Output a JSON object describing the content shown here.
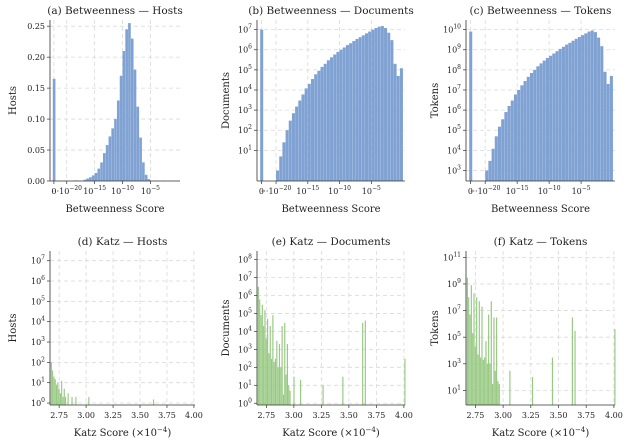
{
  "colors": {
    "betweenness": "#7fa2d3",
    "katz": "#98c983"
  },
  "chart_data": [
    {
      "type": "bar",
      "title": "(a) Betweenness — Hosts",
      "xlabel": "Betweenness Score",
      "ylabel": "Hosts",
      "yscale": "linear",
      "ylim": [
        0,
        0.26
      ],
      "xlim": [
        -23,
        0.3
      ],
      "xticks": [
        {
          "v": -22.3,
          "label": "0"
        },
        {
          "v": -20,
          "label": "···10",
          "sup": "−20"
        },
        {
          "v": -15,
          "label": "10",
          "sup": "−15"
        },
        {
          "v": -10,
          "label": "10",
          "sup": "−10"
        },
        {
          "v": -5,
          "label": "10",
          "sup": "−5"
        }
      ],
      "yticks": [
        {
          "v": 0,
          "label": "0.00"
        },
        {
          "v": 0.05,
          "label": "0.05"
        },
        {
          "v": 0.1,
          "label": "0.10"
        },
        {
          "v": 0.15,
          "label": "0.15"
        },
        {
          "v": 0.2,
          "label": "0.20"
        },
        {
          "v": 0.25,
          "label": "0.25"
        }
      ],
      "bin_width": 0.5,
      "x": [
        -22.5,
        -18.5,
        -17,
        -16.5,
        -16,
        -15.5,
        -15,
        -14.5,
        -14,
        -13.5,
        -13,
        -12.5,
        -12,
        -11.5,
        -11,
        -10.5,
        -10,
        -9.5,
        -9,
        -8.5,
        -8,
        -7.5,
        -7,
        -6.5,
        -6,
        -5.5
      ],
      "values": [
        0.165,
        0.001,
        0.002,
        0.004,
        0.006,
        0.009,
        0.013,
        0.02,
        0.03,
        0.045,
        0.058,
        0.072,
        0.085,
        0.1,
        0.13,
        0.17,
        0.21,
        0.245,
        0.255,
        0.23,
        0.18,
        0.12,
        0.07,
        0.03,
        0.01,
        0.003
      ]
    },
    {
      "type": "bar",
      "title": "(b) Betweenness — Documents",
      "xlabel": "Betweenness Score",
      "ylabel": "Documents",
      "yscale": "log",
      "ylim": [
        0.3,
        30000000
      ],
      "xlim": [
        -23,
        0.3
      ],
      "xticks": [
        {
          "v": -22.3,
          "label": "0"
        },
        {
          "v": -20,
          "label": "···10",
          "sup": "−20"
        },
        {
          "v": -15,
          "label": "10",
          "sup": "−15"
        },
        {
          "v": -10,
          "label": "10",
          "sup": "−10"
        },
        {
          "v": -5,
          "label": "10",
          "sup": "−5"
        }
      ],
      "yticks": [
        {
          "v": 10,
          "label": "10",
          "sup": "1"
        },
        {
          "v": 100,
          "label": "10",
          "sup": "2"
        },
        {
          "v": 1000,
          "label": "10",
          "sup": "3"
        },
        {
          "v": 10000,
          "label": "10",
          "sup": "4"
        },
        {
          "v": 100000,
          "label": "10",
          "sup": "5"
        },
        {
          "v": 1000000,
          "label": "10",
          "sup": "6"
        },
        {
          "v": 10000000,
          "label": "10",
          "sup": "7"
        }
      ],
      "bin_width": 0.5,
      "x": [
        -22.5,
        -20,
        -19.5,
        -19,
        -18.5,
        -18,
        -17.5,
        -17,
        -16.5,
        -16,
        -15.5,
        -15,
        -14.5,
        -14,
        -13.5,
        -13,
        -12.5,
        -12,
        -11.5,
        -11,
        -10.5,
        -10,
        -9.5,
        -9,
        -8.5,
        -8,
        -7.5,
        -7,
        -6.5,
        -6,
        -5.5,
        -5,
        -4.5,
        -4,
        -3.5,
        -3,
        -2.5,
        -2,
        -1.5,
        -1,
        -0.5
      ],
      "values": [
        10000000,
        1,
        5,
        25,
        100,
        300,
        700,
        1500,
        3000,
        6000,
        12000,
        20000,
        35000,
        60000,
        90000,
        140000,
        200000,
        300000,
        420000,
        580000,
        780000,
        1000000,
        1300000,
        1700000,
        2100000,
        2700000,
        3400000,
        4200000,
        5200000,
        6500000,
        8000000,
        10000000,
        12000000,
        14000000,
        15000000,
        12000000,
        7000000,
        3000000,
        200000,
        50000,
        120000
      ]
    },
    {
      "type": "bar",
      "title": "(c) Betweenness — Tokens",
      "xlabel": "Betweenness Score",
      "ylabel": "Tokens",
      "yscale": "log",
      "ylim": [
        300,
        30000000000
      ],
      "xlim": [
        -23,
        0.3
      ],
      "xticks": [
        {
          "v": -22.3,
          "label": "0"
        },
        {
          "v": -20,
          "label": "···10",
          "sup": "−20"
        },
        {
          "v": -15,
          "label": "10",
          "sup": "−15"
        },
        {
          "v": -10,
          "label": "10",
          "sup": "−10"
        },
        {
          "v": -5,
          "label": "10",
          "sup": "−5"
        }
      ],
      "yticks": [
        {
          "v": 1000,
          "label": "10",
          "sup": "3"
        },
        {
          "v": 10000,
          "label": "10",
          "sup": "4"
        },
        {
          "v": 100000,
          "label": "10",
          "sup": "5"
        },
        {
          "v": 1000000,
          "label": "10",
          "sup": "6"
        },
        {
          "v": 10000000,
          "label": "10",
          "sup": "7"
        },
        {
          "v": 100000000,
          "label": "10",
          "sup": "8"
        },
        {
          "v": 1000000000,
          "label": "10",
          "sup": "9"
        },
        {
          "v": 10000000000,
          "label": "10",
          "sup": "10"
        }
      ],
      "bin_width": 0.5,
      "x": [
        -22.5,
        -20,
        -19.5,
        -19,
        -18.5,
        -18,
        -17.5,
        -17,
        -16.5,
        -16,
        -15.5,
        -15,
        -14.5,
        -14,
        -13.5,
        -13,
        -12.5,
        -12,
        -11.5,
        -11,
        -10.5,
        -10,
        -9.5,
        -9,
        -8.5,
        -8,
        -7.5,
        -7,
        -6.5,
        -6,
        -5.5,
        -5,
        -4.5,
        -4,
        -3.5,
        -3,
        -2.5,
        -2,
        -1.5,
        -1,
        -0.5
      ],
      "values": [
        8000000000,
        1000,
        3000,
        12000,
        50000,
        150000,
        350000,
        800000,
        1600000,
        3000000,
        6000000,
        10000000,
        17000000,
        28000000,
        45000000,
        70000000,
        100000000,
        150000000,
        210000000,
        290000000,
        390000000,
        500000000,
        650000000,
        850000000,
        1100000000,
        1400000000,
        1800000000,
        2200000000,
        2800000000,
        3500000000,
        4300000000,
        5300000000,
        6500000000,
        8000000000,
        9000000000,
        7500000000,
        4000000000,
        1500000000,
        80000000,
        20000000,
        50000000
      ]
    },
    {
      "type": "bar",
      "title": "(d) Katz — Hosts",
      "xlabel": "Katz Score (×10",
      "xlabel_sup": "−4",
      "xlabel_tail": ")",
      "ylabel": "Hosts",
      "yscale": "log",
      "ylim": [
        0.8,
        30000000
      ],
      "xlim": [
        2.665,
        4.01
      ],
      "xticks": [
        {
          "v": 2.75,
          "label": "2.75"
        },
        {
          "v": 3.0,
          "label": "3.00"
        },
        {
          "v": 3.25,
          "label": "3.25"
        },
        {
          "v": 3.5,
          "label": "3.50"
        },
        {
          "v": 3.75,
          "label": "3.75"
        },
        {
          "v": 4.0,
          "label": "4.00"
        }
      ],
      "yticks": [
        {
          "v": 1,
          "label": "10",
          "sup": "0"
        },
        {
          "v": 10,
          "label": "10",
          "sup": "1"
        },
        {
          "v": 100,
          "label": "10",
          "sup": "2"
        },
        {
          "v": 1000,
          "label": "10",
          "sup": "3"
        },
        {
          "v": 10000,
          "label": "10",
          "sup": "4"
        },
        {
          "v": 100000,
          "label": "10",
          "sup": "5"
        },
        {
          "v": 1000000,
          "label": "10",
          "sup": "6"
        },
        {
          "v": 10000000,
          "label": "10",
          "sup": "7"
        }
      ],
      "bin_width": 0.012,
      "x": [
        2.672,
        2.684,
        2.696,
        2.708,
        2.72,
        2.732,
        2.744,
        2.756,
        2.768,
        2.78,
        2.792,
        2.804,
        2.828,
        2.864,
        2.9,
        3.02,
        3.62
      ],
      "values": [
        100,
        40,
        20,
        15,
        8,
        10,
        5,
        3,
        12,
        2,
        5,
        2,
        3,
        2,
        2,
        2,
        1.5
      ]
    },
    {
      "type": "bar",
      "title": "(e) Katz — Documents",
      "xlabel": "Katz Score (×10",
      "xlabel_sup": "−4",
      "xlabel_tail": ")",
      "ylabel": "Documents",
      "yscale": "log",
      "ylim": [
        0.8,
        300000000
      ],
      "xlim": [
        2.665,
        4.01
      ],
      "xticks": [
        {
          "v": 2.75,
          "label": "2.75"
        },
        {
          "v": 3.0,
          "label": "3.00"
        },
        {
          "v": 3.25,
          "label": "3.25"
        },
        {
          "v": 3.5,
          "label": "3.50"
        },
        {
          "v": 3.75,
          "label": "3.75"
        },
        {
          "v": 4.0,
          "label": "4.00"
        }
      ],
      "yticks": [
        {
          "v": 1,
          "label": "10",
          "sup": "0"
        },
        {
          "v": 10,
          "label": "10",
          "sup": "1"
        },
        {
          "v": 100,
          "label": "10",
          "sup": "2"
        },
        {
          "v": 1000,
          "label": "10",
          "sup": "3"
        },
        {
          "v": 10000,
          "label": "10",
          "sup": "4"
        },
        {
          "v": 100000,
          "label": "10",
          "sup": "5"
        },
        {
          "v": 1000000,
          "label": "10",
          "sup": "6"
        },
        {
          "v": 10000000,
          "label": "10",
          "sup": "7"
        },
        {
          "v": 100000000,
          "label": "10",
          "sup": "8"
        }
      ],
      "bin_width": 0.012,
      "x": [
        2.672,
        2.684,
        2.696,
        2.708,
        2.72,
        2.732,
        2.744,
        2.756,
        2.768,
        2.78,
        2.792,
        2.804,
        2.816,
        2.828,
        2.84,
        2.852,
        2.864,
        2.876,
        2.888,
        2.9,
        2.912,
        2.924,
        2.936,
        2.948,
        2.96,
        2.996,
        3.056,
        3.26,
        3.44,
        3.62,
        3.644,
        4.004
      ],
      "values": [
        3000000,
        600000,
        80000,
        300000,
        20000,
        150000,
        4000,
        50000,
        600,
        20000,
        300,
        80000,
        200,
        300,
        3000,
        100,
        2000,
        100,
        20000,
        3,
        30000,
        40,
        2000,
        10,
        5,
        30,
        20,
        10,
        30,
        30000,
        40000,
        300
      ]
    },
    {
      "type": "bar",
      "title": "(f) Katz — Tokens",
      "xlabel": "Katz Score (×10",
      "xlabel_sup": "−4",
      "xlabel_tail": ")",
      "ylabel": "Tokens",
      "yscale": "log",
      "ylim": [
        0.8,
        300000000000
      ],
      "xlim": [
        2.665,
        4.01
      ],
      "xticks": [
        {
          "v": 2.75,
          "label": "2.75"
        },
        {
          "v": 3.0,
          "label": "3.00"
        },
        {
          "v": 3.25,
          "label": "3.25"
        },
        {
          "v": 3.5,
          "label": "3.50"
        },
        {
          "v": 3.75,
          "label": "3.75"
        },
        {
          "v": 4.0,
          "label": "4.00"
        }
      ],
      "yticks": [
        {
          "v": 10,
          "label": "10",
          "sup": "1"
        },
        {
          "v": 1000,
          "label": "10",
          "sup": "3"
        },
        {
          "v": 100000,
          "label": "10",
          "sup": "5"
        },
        {
          "v": 10000000,
          "label": "10",
          "sup": "7"
        },
        {
          "v": 1000000000,
          "label": "10",
          "sup": "9"
        },
        {
          "v": 100000000000,
          "label": "10",
          "sup": "11"
        }
      ],
      "bin_width": 0.012,
      "x": [
        2.672,
        2.684,
        2.696,
        2.708,
        2.72,
        2.732,
        2.744,
        2.756,
        2.768,
        2.78,
        2.792,
        2.804,
        2.816,
        2.828,
        2.84,
        2.852,
        2.864,
        2.876,
        2.888,
        2.9,
        2.912,
        2.924,
        2.936,
        2.948,
        2.96,
        3.056,
        3.26,
        3.44,
        3.62,
        3.644,
        4.004
      ],
      "values": [
        3000000000,
        100000000,
        5000000,
        800000000,
        200000,
        200000000,
        20000,
        100000000,
        5000,
        50000000,
        3000,
        20000000,
        2000,
        3000,
        50000,
        1000,
        5000000,
        1000,
        50000000,
        30,
        3000000,
        300,
        3000000,
        50,
        30,
        300,
        100,
        3000,
        3000000,
        300000,
        400000
      ]
    }
  ]
}
